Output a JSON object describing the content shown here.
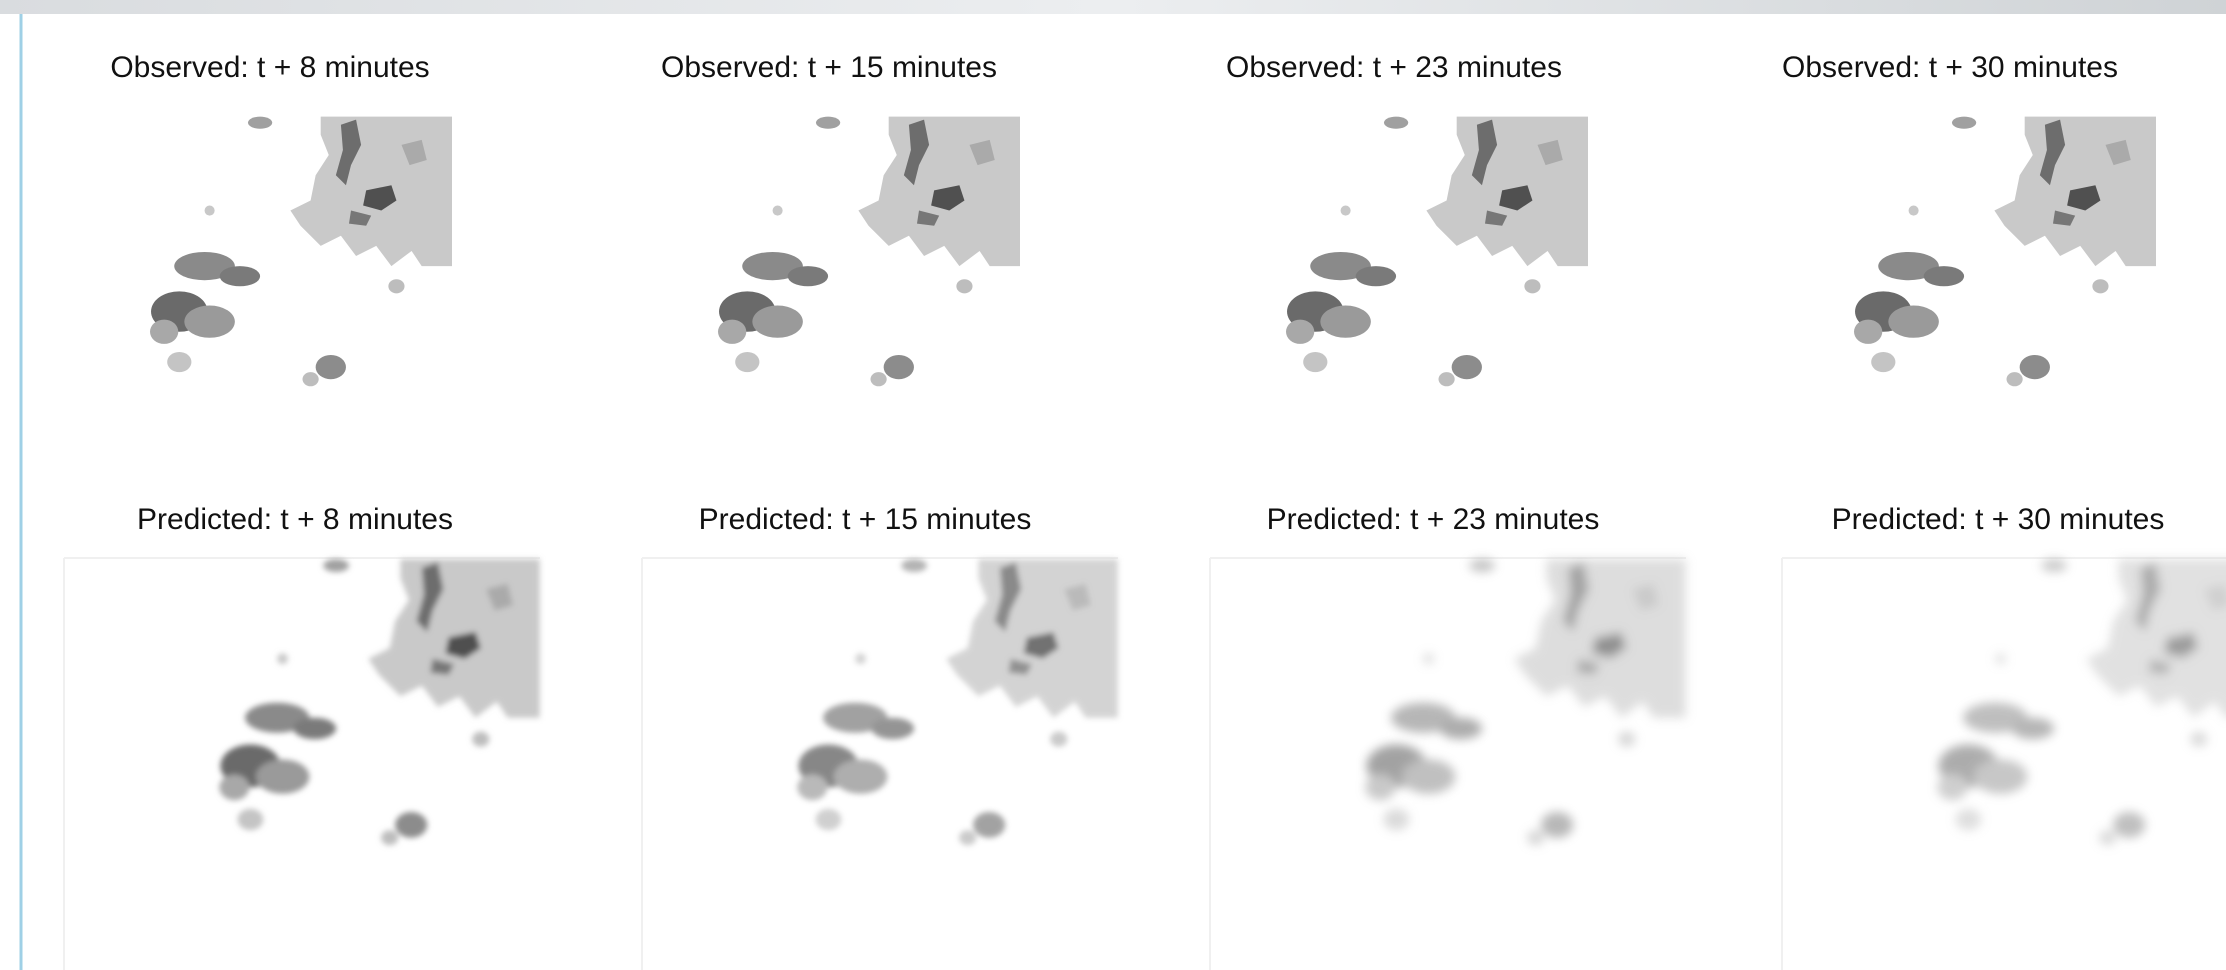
{
  "observed": [
    "Observed: t + 8 minutes",
    "Observed: t + 15 minutes",
    "Observed: t + 23 minutes",
    "Observed: t + 30 minutes"
  ],
  "predicted": [
    "Predicted: t + 8 minutes",
    "Predicted: t + 15 minutes",
    "Predicted: t + 23 minutes",
    "Predicted: t + 30 minutes"
  ]
}
